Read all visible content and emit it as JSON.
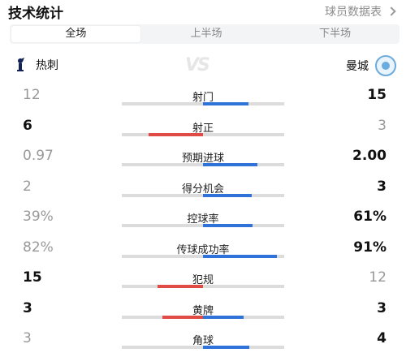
{
  "header": {
    "title": "技术统计",
    "link_label": "球员数据表"
  },
  "tabs": [
    {
      "label": "全场",
      "active": true
    },
    {
      "label": "上半场",
      "active": false
    },
    {
      "label": "下半场",
      "active": false
    }
  ],
  "teams": {
    "home": "热刺",
    "away": "曼城",
    "vs": "VS"
  },
  "colors": {
    "home_win": "#e04b45",
    "away_win": "#2f73d9",
    "track": "#dcdcdc"
  },
  "stats": [
    {
      "label": "射门",
      "home": "12",
      "away": "15",
      "winner": "away",
      "home_share": 0.44,
      "away_share": 0.56
    },
    {
      "label": "射正",
      "home": "6",
      "away": "3",
      "winner": "home",
      "home_share": 0.67,
      "away_share": 0.33
    },
    {
      "label": "预期进球",
      "home": "0.97",
      "away": "2.00",
      "winner": "away",
      "home_share": 0.33,
      "away_share": 0.67
    },
    {
      "label": "得分机会",
      "home": "2",
      "away": "3",
      "winner": "away",
      "home_share": 0.4,
      "away_share": 0.6
    },
    {
      "label": "控球率",
      "home": "39%",
      "away": "61%",
      "winner": "away",
      "home_share": 0.39,
      "away_share": 0.61
    },
    {
      "label": "传球成功率",
      "home": "82%",
      "away": "91%",
      "winner": "away",
      "home_share": 0.82,
      "away_share": 0.91
    },
    {
      "label": "犯规",
      "home": "15",
      "away": "12",
      "winner": "home",
      "home_share": 0.56,
      "away_share": 0.44
    },
    {
      "label": "黄牌",
      "home": "3",
      "away": "3",
      "winner": "both",
      "home_share": 0.5,
      "away_share": 0.5
    },
    {
      "label": "角球",
      "home": "3",
      "away": "4",
      "winner": "away",
      "home_share": 0.43,
      "away_share": 0.57
    }
  ]
}
